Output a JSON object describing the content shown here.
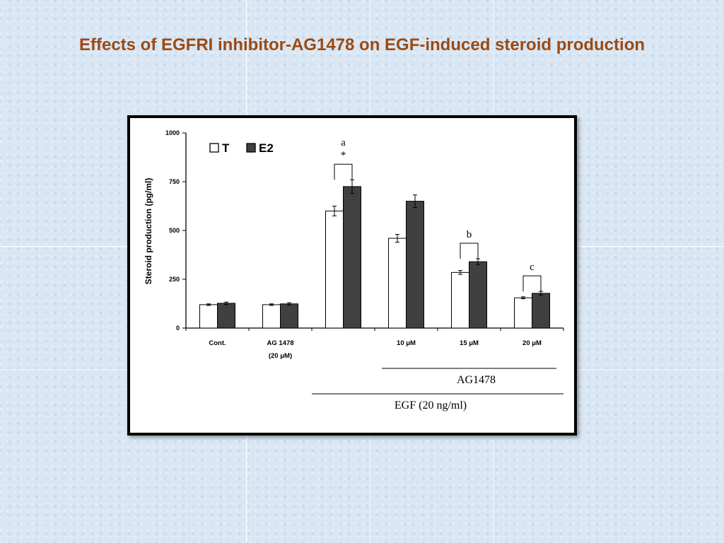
{
  "slide": {
    "title": "Effects of EGFRI inhibitor-AG1478 on EGF-induced steroid production"
  },
  "chart_data": {
    "type": "bar",
    "title": "",
    "xlabel": "",
    "ylabel": "Steroid production  (pg/ml)",
    "ylim": [
      0,
      1000
    ],
    "yticks": [
      0,
      250,
      500,
      750,
      1000
    ],
    "grid": false,
    "legend": {
      "placement": "top-left",
      "entries": [
        "T",
        "E2"
      ]
    },
    "categories": [
      "Cont.",
      "AG 1478\n(20   μM)",
      "",
      "10 μM",
      "15 μM",
      "20 μM"
    ],
    "category_lines": [
      [
        "Cont."
      ],
      [
        "AG 1478",
        "(20   μM)"
      ],
      [
        ""
      ],
      [
        "10 μM"
      ],
      [
        "15 μM"
      ],
      [
        "20 μM"
      ]
    ],
    "series": [
      {
        "name": "T",
        "color": "#ffffff",
        "values": [
          120,
          120,
          600,
          460,
          285,
          155
        ],
        "errors": [
          4,
          4,
          25,
          20,
          10,
          5
        ]
      },
      {
        "name": "E2",
        "color": "#404040",
        "values": [
          127,
          124,
          725,
          650,
          340,
          178
        ],
        "errors": [
          6,
          6,
          35,
          32,
          15,
          10
        ]
      }
    ],
    "significance": [
      {
        "category_index": 2,
        "labels": [
          "a",
          "*"
        ]
      },
      {
        "category_index": 4,
        "labels": [
          "b"
        ]
      },
      {
        "category_index": 5,
        "labels": [
          "c"
        ]
      }
    ],
    "group_labels": [
      {
        "text": "AG1478",
        "from_index": 3,
        "to_index": 5
      },
      {
        "text": "EGF (20 ng/ml)",
        "from_index": 2,
        "to_index": 5
      }
    ]
  }
}
